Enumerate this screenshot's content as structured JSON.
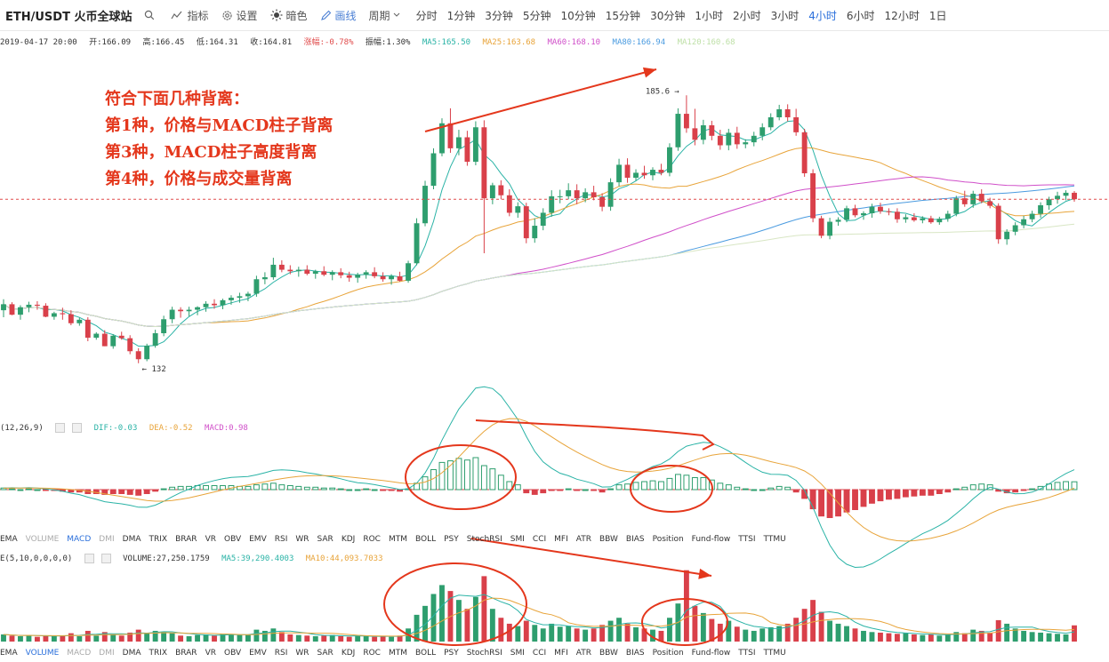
{
  "toolbar": {
    "title": "ETH/USDT 火币全球站",
    "indicator_label": "指标",
    "settings_label": "设置",
    "theme_label": "暗色",
    "draw_label": "画线",
    "period_label": "周期",
    "periods": [
      "分时",
      "1分钟",
      "3分钟",
      "5分钟",
      "10分钟",
      "15分钟",
      "30分钟",
      "1小时",
      "2小时",
      "3小时",
      "4小时",
      "6小时",
      "12小时",
      "1日"
    ],
    "active_period": "4小时"
  },
  "ohlc": {
    "time": "2019-04-17 20:00",
    "open": "开:166.09",
    "high": "高:166.45",
    "low": "低:164.31",
    "close": "收:164.81",
    "change": "涨幅:-0.78%",
    "amplitude": "振幅:1.30%",
    "ma5": "MA5:165.50",
    "ma25": "MA25:163.68",
    "ma60": "MA60:168.10",
    "ma80": "MA80:166.94",
    "ma120": "MA120:160.68"
  },
  "annotation": {
    "lines": [
      "符合下面几种背离：",
      "第1种，价格与MACD柱子背离",
      "第3种，MACD柱子高度背离",
      "第4种，价格与成交量背离"
    ],
    "color": "#e4371c"
  },
  "macd_legend": {
    "params": "(12,26,9)",
    "dif": "DIF:-0.03",
    "dea": "DEA:-0.52",
    "macd": "MACD:0.98"
  },
  "volume_legend": {
    "params": "E(5,10,0,0,0,0)",
    "volume": "VOLUME:27,250.1759",
    "ma5": "MA5:39,290.4003",
    "ma10": "MA10:44,093.7033"
  },
  "indicator_tabs": [
    "EMA",
    "VOLUME",
    "MACD",
    "DMI",
    "DMA",
    "TRIX",
    "BRAR",
    "VR",
    "OBV",
    "EMV",
    "RSI",
    "WR",
    "SAR",
    "KDJ",
    "ROC",
    "MTM",
    "BOLL",
    "PSY",
    "StochRSI",
    "SMI",
    "CCI",
    "MFI",
    "ATR",
    "BBW",
    "BIAS",
    "Position",
    "Fund-flow",
    "TTSI",
    "TTMU"
  ],
  "tabs1_active": "MACD",
  "tabs2_active": "VOLUME",
  "colors": {
    "up": "#2e9e6e",
    "down": "#d9404a",
    "ma5": "#2ab3a6",
    "ma25": "#e8a43a",
    "ma60": "#d04fc9",
    "ma80": "#4a9be0",
    "ma120": "#d8e6c4",
    "current_price_line": "#e04b4b"
  },
  "chart_data": {
    "type": "candlestick",
    "price_range": [
      122,
      194
    ],
    "high_label": "185.6",
    "low_label": "132",
    "current_price": 164.81,
    "candles": [
      [
        142.6,
        144.8,
        141.2,
        143.8
      ],
      [
        143.8,
        144.2,
        141.6,
        141.7
      ],
      [
        141.7,
        143.6,
        140.7,
        143.2
      ],
      [
        143.2,
        144.3,
        142.2,
        143.7
      ],
      [
        143.7,
        144.4,
        142.7,
        143.5
      ],
      [
        143.5,
        144.0,
        141.2,
        141.3
      ],
      [
        141.3,
        142.3,
        140.7,
        142.0
      ],
      [
        142.0,
        143.1,
        140.7,
        141.8
      ],
      [
        141.8,
        142.6,
        139.6,
        140.0
      ],
      [
        140.0,
        141.1,
        139.5,
        140.7
      ],
      [
        140.7,
        141.2,
        136.4,
        137.1
      ],
      [
        137.1,
        138.2,
        136.7,
        137.9
      ],
      [
        137.9,
        138.6,
        135.4,
        135.4
      ],
      [
        135.4,
        137.8,
        134.9,
        137.5
      ],
      [
        137.5,
        138.3,
        136.7,
        137.0
      ],
      [
        137.0,
        137.6,
        133.8,
        134.4
      ],
      [
        134.4,
        135.0,
        132.0,
        132.8
      ],
      [
        132.8,
        135.9,
        132.4,
        135.5
      ],
      [
        135.5,
        138.7,
        135.1,
        138.0
      ],
      [
        138.0,
        141.5,
        137.4,
        140.8
      ],
      [
        140.8,
        143.3,
        140.0,
        142.7
      ],
      [
        142.7,
        143.2,
        141.1,
        142.4
      ],
      [
        142.4,
        143.3,
        141.4,
        142.7
      ],
      [
        142.7,
        143.4,
        141.6,
        143.2
      ],
      [
        143.2,
        144.4,
        142.3,
        143.9
      ],
      [
        143.9,
        144.8,
        142.9,
        143.6
      ],
      [
        143.6,
        144.9,
        142.8,
        144.6
      ],
      [
        144.6,
        145.6,
        143.7,
        145.1
      ],
      [
        145.1,
        146.1,
        144.1,
        145.4
      ],
      [
        145.4,
        146.3,
        144.4,
        145.9
      ],
      [
        145.9,
        149.5,
        145.3,
        148.8
      ],
      [
        148.8,
        150.2,
        147.8,
        149.2
      ],
      [
        149.2,
        153.1,
        148.7,
        151.7
      ],
      [
        151.7,
        152.6,
        150.2,
        150.7
      ],
      [
        150.7,
        151.6,
        149.8,
        150.4
      ],
      [
        150.4,
        151.3,
        149.3,
        150.7
      ],
      [
        150.7,
        151.6,
        149.6,
        149.9
      ],
      [
        149.9,
        150.7,
        148.9,
        150.4
      ],
      [
        150.4,
        151.4,
        149.4,
        149.7
      ],
      [
        149.7,
        150.6,
        148.6,
        150.2
      ],
      [
        150.2,
        151.0,
        149.0,
        149.6
      ],
      [
        149.6,
        150.3,
        148.3,
        149.1
      ],
      [
        149.1,
        150.1,
        148.1,
        149.7
      ],
      [
        149.7,
        150.6,
        148.9,
        150.2
      ],
      [
        150.2,
        151.2,
        149.0,
        149.4
      ],
      [
        149.4,
        150.2,
        148.3,
        148.8
      ],
      [
        148.8,
        149.8,
        147.7,
        149.4
      ],
      [
        149.4,
        150.3,
        148.3,
        148.5
      ],
      [
        148.5,
        152.5,
        148.1,
        152.0
      ],
      [
        152.0,
        161.0,
        151.6,
        160.0
      ],
      [
        160.0,
        168.5,
        159.4,
        167.5
      ],
      [
        167.5,
        175.0,
        166.8,
        174.0
      ],
      [
        174.0,
        181.0,
        173.4,
        180.0
      ],
      [
        180.0,
        183.0,
        174.1,
        175.0
      ],
      [
        175.0,
        178.7,
        173.6,
        177.2
      ],
      [
        177.2,
        178.5,
        171.5,
        172.3
      ],
      [
        172.3,
        180.4,
        171.6,
        179.2
      ],
      [
        179.2,
        180.6,
        154.0,
        165.0
      ],
      [
        165.0,
        168.1,
        163.8,
        167.6
      ],
      [
        167.6,
        168.6,
        164.8,
        165.6
      ],
      [
        165.6,
        166.8,
        161.4,
        162.1
      ],
      [
        162.1,
        164.2,
        161.1,
        163.4
      ],
      [
        163.4,
        164.1,
        156.0,
        157.0
      ],
      [
        157.0,
        161.0,
        156.1,
        159.5
      ],
      [
        159.5,
        163.0,
        158.6,
        162.1
      ],
      [
        162.1,
        166.6,
        161.3,
        165.4
      ],
      [
        165.4,
        166.7,
        164.0,
        165.4
      ],
      [
        165.4,
        168.0,
        164.8,
        166.6
      ],
      [
        166.6,
        167.8,
        163.8,
        165.0
      ],
      [
        165.0,
        167.0,
        164.2,
        166.2
      ],
      [
        166.2,
        167.5,
        164.6,
        165.2
      ],
      [
        165.2,
        166.0,
        162.4,
        163.3
      ],
      [
        163.3,
        169.0,
        162.5,
        168.2
      ],
      [
        168.2,
        172.9,
        167.4,
        171.7
      ],
      [
        171.7,
        173.0,
        168.1,
        169.1
      ],
      [
        169.1,
        170.8,
        168.5,
        170.1
      ],
      [
        170.1,
        171.5,
        168.9,
        169.6
      ],
      [
        169.6,
        171.2,
        168.6,
        170.7
      ],
      [
        170.7,
        171.9,
        169.6,
        170.1
      ],
      [
        170.1,
        176.0,
        169.4,
        175.2
      ],
      [
        175.2,
        183.0,
        174.5,
        181.9
      ],
      [
        181.9,
        185.6,
        178.1,
        179.0
      ],
      [
        179.0,
        182.9,
        175.6,
        176.7
      ],
      [
        176.7,
        180.7,
        175.8,
        179.6
      ],
      [
        179.6,
        180.5,
        176.6,
        177.5
      ],
      [
        177.5,
        178.7,
        174.7,
        175.6
      ],
      [
        175.6,
        178.9,
        174.6,
        178.1
      ],
      [
        178.1,
        179.3,
        174.9,
        175.8
      ],
      [
        175.8,
        176.8,
        175.0,
        176.2
      ],
      [
        176.2,
        178.3,
        175.4,
        177.5
      ],
      [
        177.5,
        180.0,
        176.6,
        179.2
      ],
      [
        179.2,
        182.0,
        178.6,
        181.2
      ],
      [
        181.2,
        183.7,
        180.6,
        182.8
      ],
      [
        182.8,
        183.8,
        180.4,
        181.2
      ],
      [
        181.2,
        182.9,
        177.5,
        178.2
      ],
      [
        178.2,
        178.9,
        169.3,
        170.0
      ],
      [
        170.0,
        170.8,
        160.2,
        161.0
      ],
      [
        161.0,
        161.5,
        157.0,
        157.5
      ],
      [
        157.5,
        161.1,
        156.8,
        160.3
      ],
      [
        160.3,
        161.2,
        159.5,
        160.7
      ],
      [
        160.7,
        163.5,
        160.2,
        163.0
      ],
      [
        163.0,
        163.7,
        161.2,
        161.6
      ],
      [
        161.6,
        162.4,
        160.7,
        162.0
      ],
      [
        162.0,
        163.9,
        161.1,
        163.3
      ],
      [
        163.3,
        164.1,
        161.9,
        162.4
      ],
      [
        162.4,
        163.0,
        161.6,
        162.3
      ],
      [
        162.3,
        163.0,
        160.1,
        160.8
      ],
      [
        160.8,
        161.8,
        160.1,
        161.2
      ],
      [
        161.2,
        162.0,
        160.3,
        160.6
      ],
      [
        160.6,
        161.4,
        160.0,
        161.0
      ],
      [
        161.0,
        161.5,
        159.9,
        160.2
      ],
      [
        160.2,
        161.3,
        159.7,
        160.9
      ],
      [
        160.9,
        162.5,
        160.3,
        161.9
      ],
      [
        161.9,
        165.5,
        161.4,
        165.0
      ],
      [
        165.0,
        166.5,
        163.3,
        163.8
      ],
      [
        163.8,
        166.5,
        163.1,
        165.9
      ],
      [
        165.9,
        166.8,
        164.0,
        164.4
      ],
      [
        164.4,
        165.1,
        163.0,
        163.5
      ],
      [
        163.5,
        164.0,
        155.9,
        156.8
      ],
      [
        156.8,
        158.8,
        155.7,
        158.3
      ],
      [
        158.3,
        160.2,
        157.6,
        159.6
      ],
      [
        159.6,
        161.5,
        159.0,
        160.8
      ],
      [
        160.8,
        162.5,
        160.2,
        161.9
      ],
      [
        161.9,
        164.2,
        161.1,
        163.6
      ],
      [
        163.6,
        165.3,
        162.7,
        164.8
      ],
      [
        164.8,
        166.3,
        163.9,
        165.5
      ],
      [
        165.5,
        166.6,
        164.6,
        166.1
      ],
      [
        166.1,
        166.45,
        164.31,
        164.81
      ]
    ],
    "macd_hist": [
      0.2,
      0.1,
      0.0,
      0.1,
      0.0,
      -0.1,
      -0.1,
      -0.2,
      -0.3,
      -0.3,
      -0.5,
      -0.5,
      -0.6,
      -0.5,
      -0.5,
      -0.6,
      -0.7,
      -0.5,
      -0.2,
      0.1,
      0.3,
      0.4,
      0.4,
      0.5,
      0.5,
      0.5,
      0.5,
      0.5,
      0.4,
      0.4,
      0.6,
      0.7,
      0.8,
      0.6,
      0.5,
      0.4,
      0.3,
      0.3,
      0.2,
      0.2,
      0.1,
      0.0,
      0.0,
      0.1,
      0.0,
      -0.1,
      -0.1,
      -0.2,
      0.1,
      0.8,
      1.6,
      2.5,
      3.4,
      3.6,
      3.9,
      3.7,
      4.0,
      3.0,
      2.6,
      1.8,
      1.0,
      0.6,
      -0.4,
      -0.6,
      -0.4,
      -0.1,
      -0.1,
      0.1,
      -0.1,
      0.0,
      -0.1,
      -0.3,
      0.1,
      0.6,
      0.7,
      0.9,
      1.0,
      1.1,
      1.0,
      1.4,
      1.9,
      1.8,
      1.5,
      1.5,
      1.2,
      0.8,
      0.6,
      0.3,
      0.1,
      0.0,
      0.0,
      0.2,
      0.4,
      0.3,
      -0.3,
      -1.1,
      -2.4,
      -3.3,
      -3.5,
      -3.3,
      -2.8,
      -2.5,
      -2.1,
      -1.7,
      -1.4,
      -1.2,
      -1.1,
      -0.9,
      -0.8,
      -0.7,
      -0.7,
      -0.5,
      -0.3,
      0.1,
      0.3,
      0.6,
      0.7,
      0.6,
      -0.2,
      -0.4,
      -0.3,
      -0.1,
      0.1,
      0.4,
      0.7,
      0.9,
      1.0,
      0.98
    ],
    "macd_range": [
      -5,
      7
    ],
    "volume": [
      12,
      10,
      9,
      11,
      8,
      10,
      9,
      10,
      14,
      9,
      18,
      10,
      16,
      12,
      10,
      15,
      20,
      14,
      18,
      16,
      14,
      10,
      9,
      11,
      12,
      10,
      13,
      12,
      11,
      12,
      20,
      18,
      22,
      16,
      12,
      11,
      10,
      9,
      10,
      11,
      9,
      8,
      10,
      9,
      8,
      9,
      8,
      10,
      22,
      45,
      60,
      80,
      95,
      85,
      70,
      55,
      75,
      110,
      55,
      40,
      30,
      26,
      35,
      28,
      22,
      30,
      25,
      26,
      22,
      20,
      22,
      28,
      35,
      40,
      30,
      24,
      22,
      20,
      18,
      40,
      64,
      120,
      60,
      48,
      38,
      30,
      35,
      25,
      20,
      18,
      22,
      24,
      26,
      30,
      40,
      55,
      70,
      50,
      35,
      30,
      26,
      22,
      18,
      16,
      15,
      14,
      13,
      14,
      12,
      11,
      12,
      10,
      12,
      16,
      14,
      20,
      18,
      15,
      36,
      30,
      22,
      18,
      16,
      15,
      14,
      13,
      12,
      27.25
    ],
    "volume_max": 130
  }
}
